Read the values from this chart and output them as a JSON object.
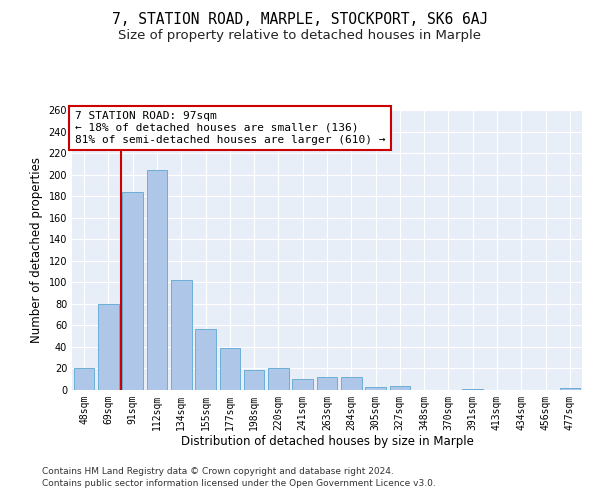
{
  "title": "7, STATION ROAD, MARPLE, STOCKPORT, SK6 6AJ",
  "subtitle": "Size of property relative to detached houses in Marple",
  "xlabel": "Distribution of detached houses by size in Marple",
  "ylabel": "Number of detached properties",
  "categories": [
    "48sqm",
    "69sqm",
    "91sqm",
    "112sqm",
    "134sqm",
    "155sqm",
    "177sqm",
    "198sqm",
    "220sqm",
    "241sqm",
    "263sqm",
    "284sqm",
    "305sqm",
    "327sqm",
    "348sqm",
    "370sqm",
    "391sqm",
    "413sqm",
    "434sqm",
    "456sqm",
    "477sqm"
  ],
  "values": [
    20,
    80,
    184,
    204,
    102,
    57,
    39,
    19,
    20,
    10,
    12,
    12,
    3,
    4,
    0,
    0,
    1,
    0,
    0,
    0,
    2
  ],
  "bar_color": "#aec6e8",
  "bar_edge_color": "#6baed6",
  "annotation_text_line1": "7 STATION ROAD: 97sqm",
  "annotation_text_line2": "← 18% of detached houses are smaller (136)",
  "annotation_text_line3": "81% of semi-detached houses are larger (610) →",
  "annotation_box_color": "#ffffff",
  "annotation_box_edge": "#cc0000",
  "red_line_color": "#cc0000",
  "footer_line1": "Contains HM Land Registry data © Crown copyright and database right 2024.",
  "footer_line2": "Contains public sector information licensed under the Open Government Licence v3.0.",
  "ylim": [
    0,
    260
  ],
  "yticks": [
    0,
    20,
    40,
    60,
    80,
    100,
    120,
    140,
    160,
    180,
    200,
    220,
    240,
    260
  ],
  "bg_color": "#e8eef8",
  "title_fontsize": 10.5,
  "subtitle_fontsize": 9.5,
  "axis_label_fontsize": 8.5,
  "tick_fontsize": 7,
  "footer_fontsize": 6.5,
  "annotation_fontsize": 8
}
